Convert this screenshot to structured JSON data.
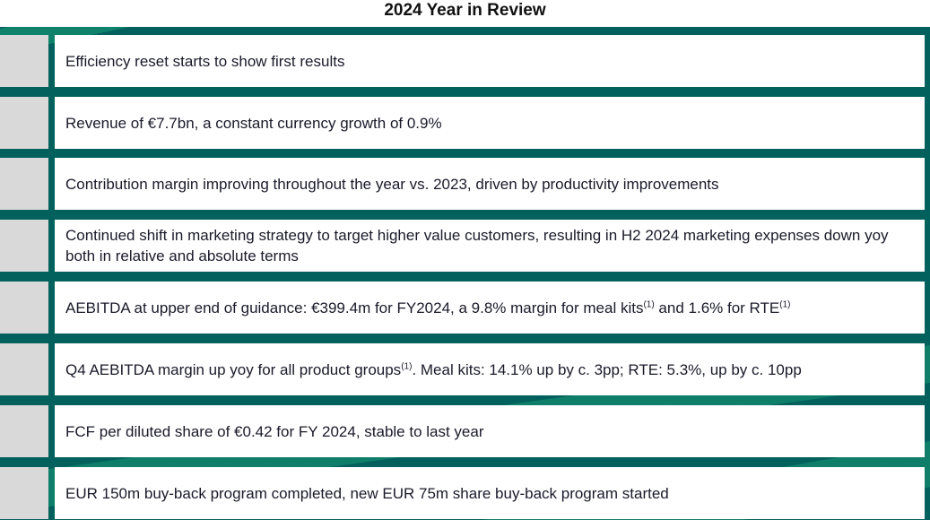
{
  "title": "2024 Year in Review",
  "rows": [
    {
      "text": "Efficiency reset starts to show first results"
    },
    {
      "text": "Revenue of €7.7bn, a constant currency growth of 0.9%"
    },
    {
      "text": "Contribution margin improving throughout the year vs. 2023, driven by productivity improvements"
    },
    {
      "text": "Continued shift in marketing strategy to target higher value customers, resulting in H2 2024 marketing expenses down yoy both in relative and absolute terms"
    },
    {
      "a": "AEBITDA at upper end of guidance: €399.4m for FY2024, a 9.8% margin for meal kits",
      "sup1": "(1)",
      "b": " and 1.6% for RTE",
      "sup2": "(1)"
    },
    {
      "a": "Q4 AEBITDA margin up yoy for all product groups",
      "sup1": "(1)",
      "b": ". Meal kits: 14.1% up by c. 3pp; RTE: 5.3%, up by c. 10pp"
    },
    {
      "text": "FCF per diluted share of €0.42 for FY 2024, stable to last year"
    },
    {
      "text": "EUR 150m buy-back  program completed, new EUR 75m share buy-back program started"
    }
  ]
}
